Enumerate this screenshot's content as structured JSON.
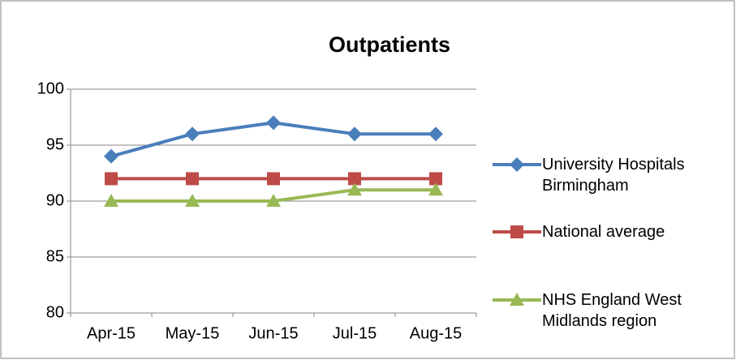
{
  "chart_data": {
    "type": "line",
    "title": "Outpatients",
    "categories": [
      "Apr-15",
      "May-15",
      "Jun-15",
      "Jul-15",
      "Aug-15"
    ],
    "series": [
      {
        "name": "University Hospitals Birmingham",
        "color": "#4a7ebb",
        "marker": "diamond",
        "values": [
          94,
          96,
          97,
          96,
          96
        ]
      },
      {
        "name": "National average",
        "color": "#be4b48",
        "marker": "square",
        "values": [
          92,
          92,
          92,
          92,
          92
        ]
      },
      {
        "name": "NHS England West Midlands region",
        "color": "#98b954",
        "marker": "triangle",
        "values": [
          90,
          90,
          90,
          91,
          91
        ]
      }
    ],
    "ylim": [
      80,
      100
    ],
    "yticks": [
      80,
      85,
      90,
      95,
      100
    ],
    "grid": true,
    "legend": "right"
  }
}
